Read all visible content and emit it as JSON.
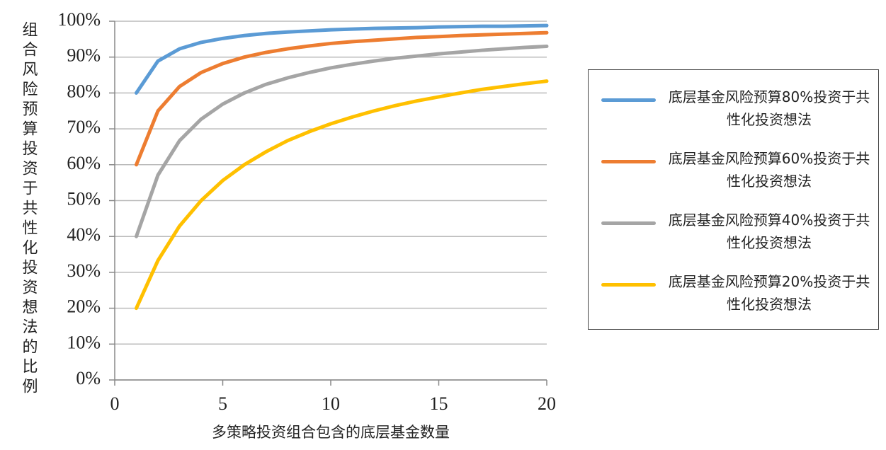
{
  "chart_data": {
    "type": "line",
    "y_label": "组合风险预算投资于共性化投资想法的比例",
    "x_label": "多策略投资组合包含的底层基金数量",
    "x": [
      1,
      2,
      3,
      4,
      5,
      6,
      7,
      8,
      9,
      10,
      11,
      12,
      13,
      14,
      15,
      16,
      17,
      18,
      19,
      20
    ],
    "series": [
      {
        "name": "底层基金风险预算80%投资于共性化投资想法",
        "color": "#5b9bd5",
        "values": [
          80,
          88.9,
          92.3,
          94.1,
          95.2,
          96.0,
          96.6,
          97.0,
          97.3,
          97.6,
          97.8,
          98.0,
          98.1,
          98.2,
          98.4,
          98.5,
          98.6,
          98.6,
          98.7,
          98.8
        ]
      },
      {
        "name": "底层基金风险预算60%投资于共性化投资想法",
        "color": "#ed7d31",
        "values": [
          60,
          75,
          81.8,
          85.7,
          88.2,
          90,
          91.3,
          92.3,
          93.1,
          93.8,
          94.3,
          94.7,
          95.1,
          95.5,
          95.7,
          96,
          96.2,
          96.4,
          96.6,
          96.8
        ]
      },
      {
        "name": "底层基金风险预算40%投资于共性化投资想法",
        "color": "#a5a5a5",
        "values": [
          40,
          57.1,
          66.7,
          72.7,
          76.9,
          80,
          82.4,
          84.2,
          85.7,
          87.0,
          88,
          88.9,
          89.7,
          90.3,
          90.9,
          91.4,
          91.9,
          92.3,
          92.7,
          93.0
        ]
      },
      {
        "name": "底层基金风险预算20%投资于共性化投资想法",
        "color": "#ffc000",
        "values": [
          20,
          33.3,
          42.9,
          50,
          55.6,
          60,
          63.6,
          66.7,
          69.2,
          71.4,
          73.3,
          75,
          76.5,
          77.8,
          78.9,
          80,
          81,
          81.8,
          82.6,
          83.3
        ]
      }
    ],
    "xlim": [
      0,
      20
    ],
    "xticks": [
      0,
      5,
      10,
      15,
      20
    ],
    "ylim": [
      0,
      100
    ],
    "yticks": [
      {
        "value": 0,
        "label": "0%"
      },
      {
        "value": 10,
        "label": "10%"
      },
      {
        "value": 20,
        "label": "20%"
      },
      {
        "value": 30,
        "label": "30%"
      },
      {
        "value": 40,
        "label": "40%"
      },
      {
        "value": 50,
        "label": "50%"
      },
      {
        "value": 60,
        "label": "60%"
      },
      {
        "value": 70,
        "label": "70%"
      },
      {
        "value": 80,
        "label": "80%"
      },
      {
        "value": 90,
        "label": "90%"
      },
      {
        "value": 100,
        "label": "100%"
      }
    ],
    "grid": true,
    "legend": "right"
  }
}
